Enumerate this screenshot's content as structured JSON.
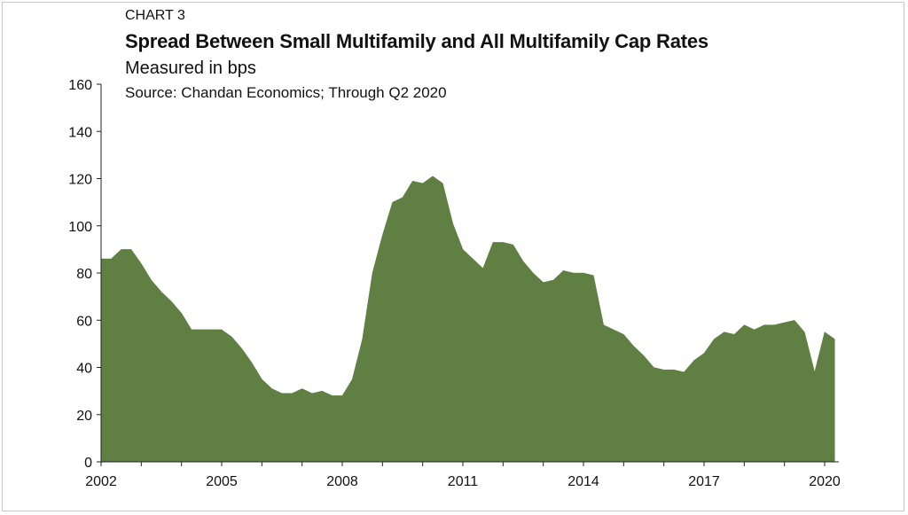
{
  "header": {
    "eyebrow": "CHART 3",
    "title": "Spread Between Small Multifamily and All Multifamily Cap Rates",
    "subtitle": "Measured in bps",
    "source": "Source: Chandan Economics; Through Q2 2020"
  },
  "colors": {
    "area": "#5f8042",
    "axis": "#222222",
    "frame": "#c8c8c8"
  },
  "chart_data": {
    "type": "area",
    "title": "Spread Between Small Multifamily and All Multifamily Cap Rates",
    "xlabel": "",
    "ylabel": "",
    "ylim": [
      0,
      160
    ],
    "xlim": [
      2002,
      2020.6
    ],
    "yticks": [
      "0",
      "20",
      "40",
      "60",
      "80",
      "100",
      "120",
      "140",
      "160"
    ],
    "xticks": [
      "2002",
      "2005",
      "2008",
      "2011",
      "2014",
      "2017",
      "2020"
    ],
    "grid": false,
    "legend": "none",
    "series": [
      {
        "x": [
          2002.0,
          2002.25,
          2002.5,
          2002.75,
          2003.0,
          2003.25,
          2003.5,
          2003.75,
          2004.0,
          2004.25,
          2004.5,
          2004.75,
          2005.0,
          2005.25,
          2005.5,
          2005.75,
          2006.0,
          2006.25,
          2006.5,
          2006.75,
          2007.0,
          2007.25,
          2007.5,
          2007.75,
          2008.0,
          2008.25,
          2008.5,
          2008.75,
          2009.0,
          2009.25,
          2009.5,
          2009.75,
          2010.0,
          2010.25,
          2010.5,
          2010.75,
          2011.0,
          2011.25,
          2011.5,
          2011.75,
          2012.0,
          2012.25,
          2012.5,
          2012.75,
          2013.0,
          2013.25,
          2013.5,
          2013.75,
          2014.0,
          2014.25,
          2014.5,
          2014.75,
          2015.0,
          2015.25,
          2015.5,
          2015.75,
          2016.0,
          2016.25,
          2016.5,
          2016.75,
          2017.0,
          2017.25,
          2017.5,
          2017.75,
          2018.0,
          2018.25,
          2018.5,
          2018.75,
          2019.0,
          2019.25,
          2019.5,
          2019.75,
          2020.0,
          2020.25
        ],
        "values": [
          86,
          86,
          90,
          90,
          84,
          77,
          72,
          68,
          63,
          56,
          56,
          56,
          56,
          53,
          48,
          42,
          35,
          31,
          29,
          29,
          31,
          29,
          30,
          28,
          28,
          35,
          52,
          80,
          96,
          110,
          112,
          119,
          118,
          121,
          118,
          101,
          90,
          86,
          82,
          93,
          93,
          92,
          85,
          80,
          76,
          77,
          81,
          80,
          80,
          79,
          58,
          56,
          54,
          49,
          45,
          40,
          39,
          39,
          38,
          43,
          46,
          52,
          55,
          54,
          58,
          56,
          58,
          58,
          59,
          60,
          55,
          38,
          55,
          52
        ]
      }
    ]
  }
}
